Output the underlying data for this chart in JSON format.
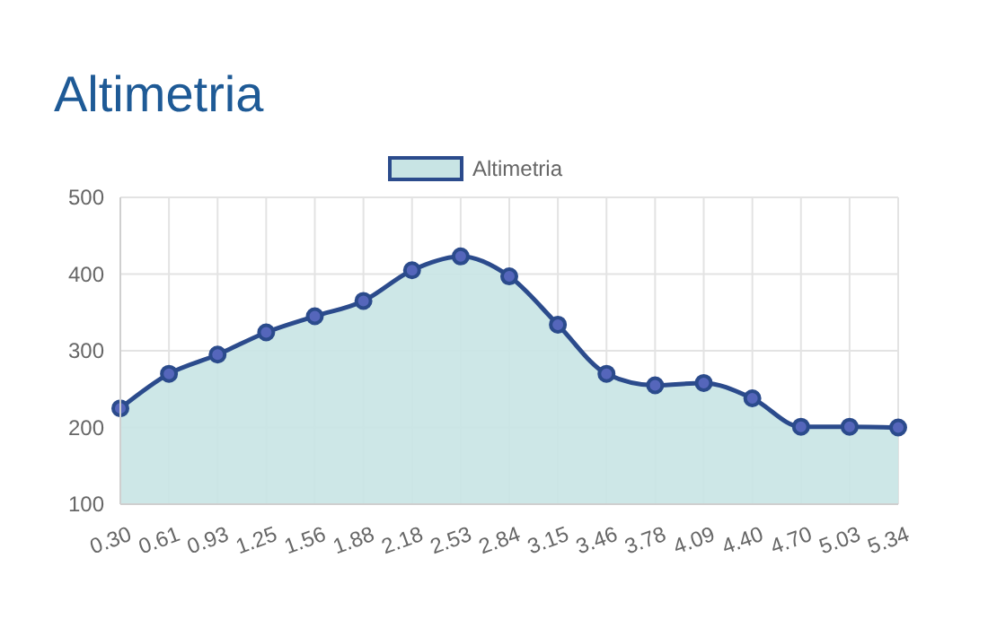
{
  "chart_data": {
    "type": "area",
    "title": "Altimetria",
    "categories": [
      "0.30",
      "0.61",
      "0.93",
      "1.25",
      "1.56",
      "1.88",
      "2.18",
      "2.53",
      "2.84",
      "3.15",
      "3.46",
      "3.78",
      "4.09",
      "4.40",
      "4.70",
      "5.03",
      "5.34"
    ],
    "series": [
      {
        "name": "Altimetria",
        "color": "#2b4b8c",
        "values": [
          225,
          270,
          295,
          324,
          345,
          365,
          405,
          423,
          397,
          334,
          270,
          255,
          258,
          238,
          201,
          201,
          200
        ]
      }
    ],
    "ylim": [
      100,
      500
    ],
    "yticks": [
      100,
      200,
      300,
      400,
      500
    ],
    "grid": true,
    "legend": "top",
    "marker": "circle",
    "line_style": "solid"
  }
}
